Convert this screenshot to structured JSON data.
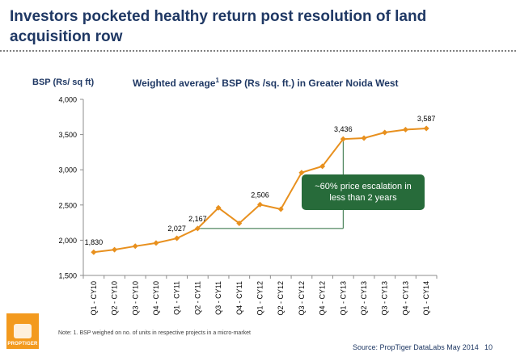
{
  "slide": {
    "title": "Investors pocketed healthy return post resolution of land acquisition row",
    "page_number": "10",
    "note": "Note: 1. BSP weighed on no. of units in respective projects in a micro-market",
    "source": "Source: PropTiger DataLabs May 2014",
    "logo_text": "PROPTIGER"
  },
  "chart_data": {
    "type": "line",
    "title": "Weighted average",
    "title_superscript": "1",
    "title_suffix": " BSP (Rs /sq. ft.) in Greater Noida West",
    "ylabel": "BSP (Rs/ sq ft)",
    "xlabel": "",
    "ylim": [
      1500,
      4000
    ],
    "yticks": [
      1500,
      2000,
      2500,
      3000,
      3500,
      4000
    ],
    "ytick_labels": [
      "1,500",
      "2,000",
      "2,500",
      "3,000",
      "3,500",
      "4,000"
    ],
    "categories": [
      "Q1 - CY10",
      "Q2 - CY10",
      "Q3 - CY10",
      "Q4 - CY10",
      "Q1 - CY11",
      "Q2 - CY11",
      "Q3 - CY11",
      "Q4 - CY11",
      "Q1 - CY12",
      "Q2 - CY12",
      "Q3 - CY12",
      "Q4 - CY12",
      "Q1 - CY13",
      "Q2 - CY13",
      "Q3 - CY13",
      "Q4 - CY13",
      "Q1 - CY14"
    ],
    "values": [
      1830,
      1865,
      1915,
      1960,
      2027,
      2167,
      2460,
      2240,
      2506,
      2440,
      2960,
      3050,
      3436,
      3450,
      3530,
      3570,
      3587
    ],
    "data_labels": [
      {
        "index": 0,
        "text": "1,830"
      },
      {
        "index": 4,
        "text": "2,027"
      },
      {
        "index": 5,
        "text": "2,167"
      },
      {
        "index": 8,
        "text": "2,506"
      },
      {
        "index": 12,
        "text": "3,436"
      },
      {
        "index": 16,
        "text": "3,587"
      }
    ],
    "line_color": "#e8901e",
    "annotation": {
      "line1": "~60% price escalation in",
      "line2": "less than 2 years",
      "from_index": 5,
      "to_index": 12,
      "color": "#276b3a"
    },
    "grid": false
  }
}
